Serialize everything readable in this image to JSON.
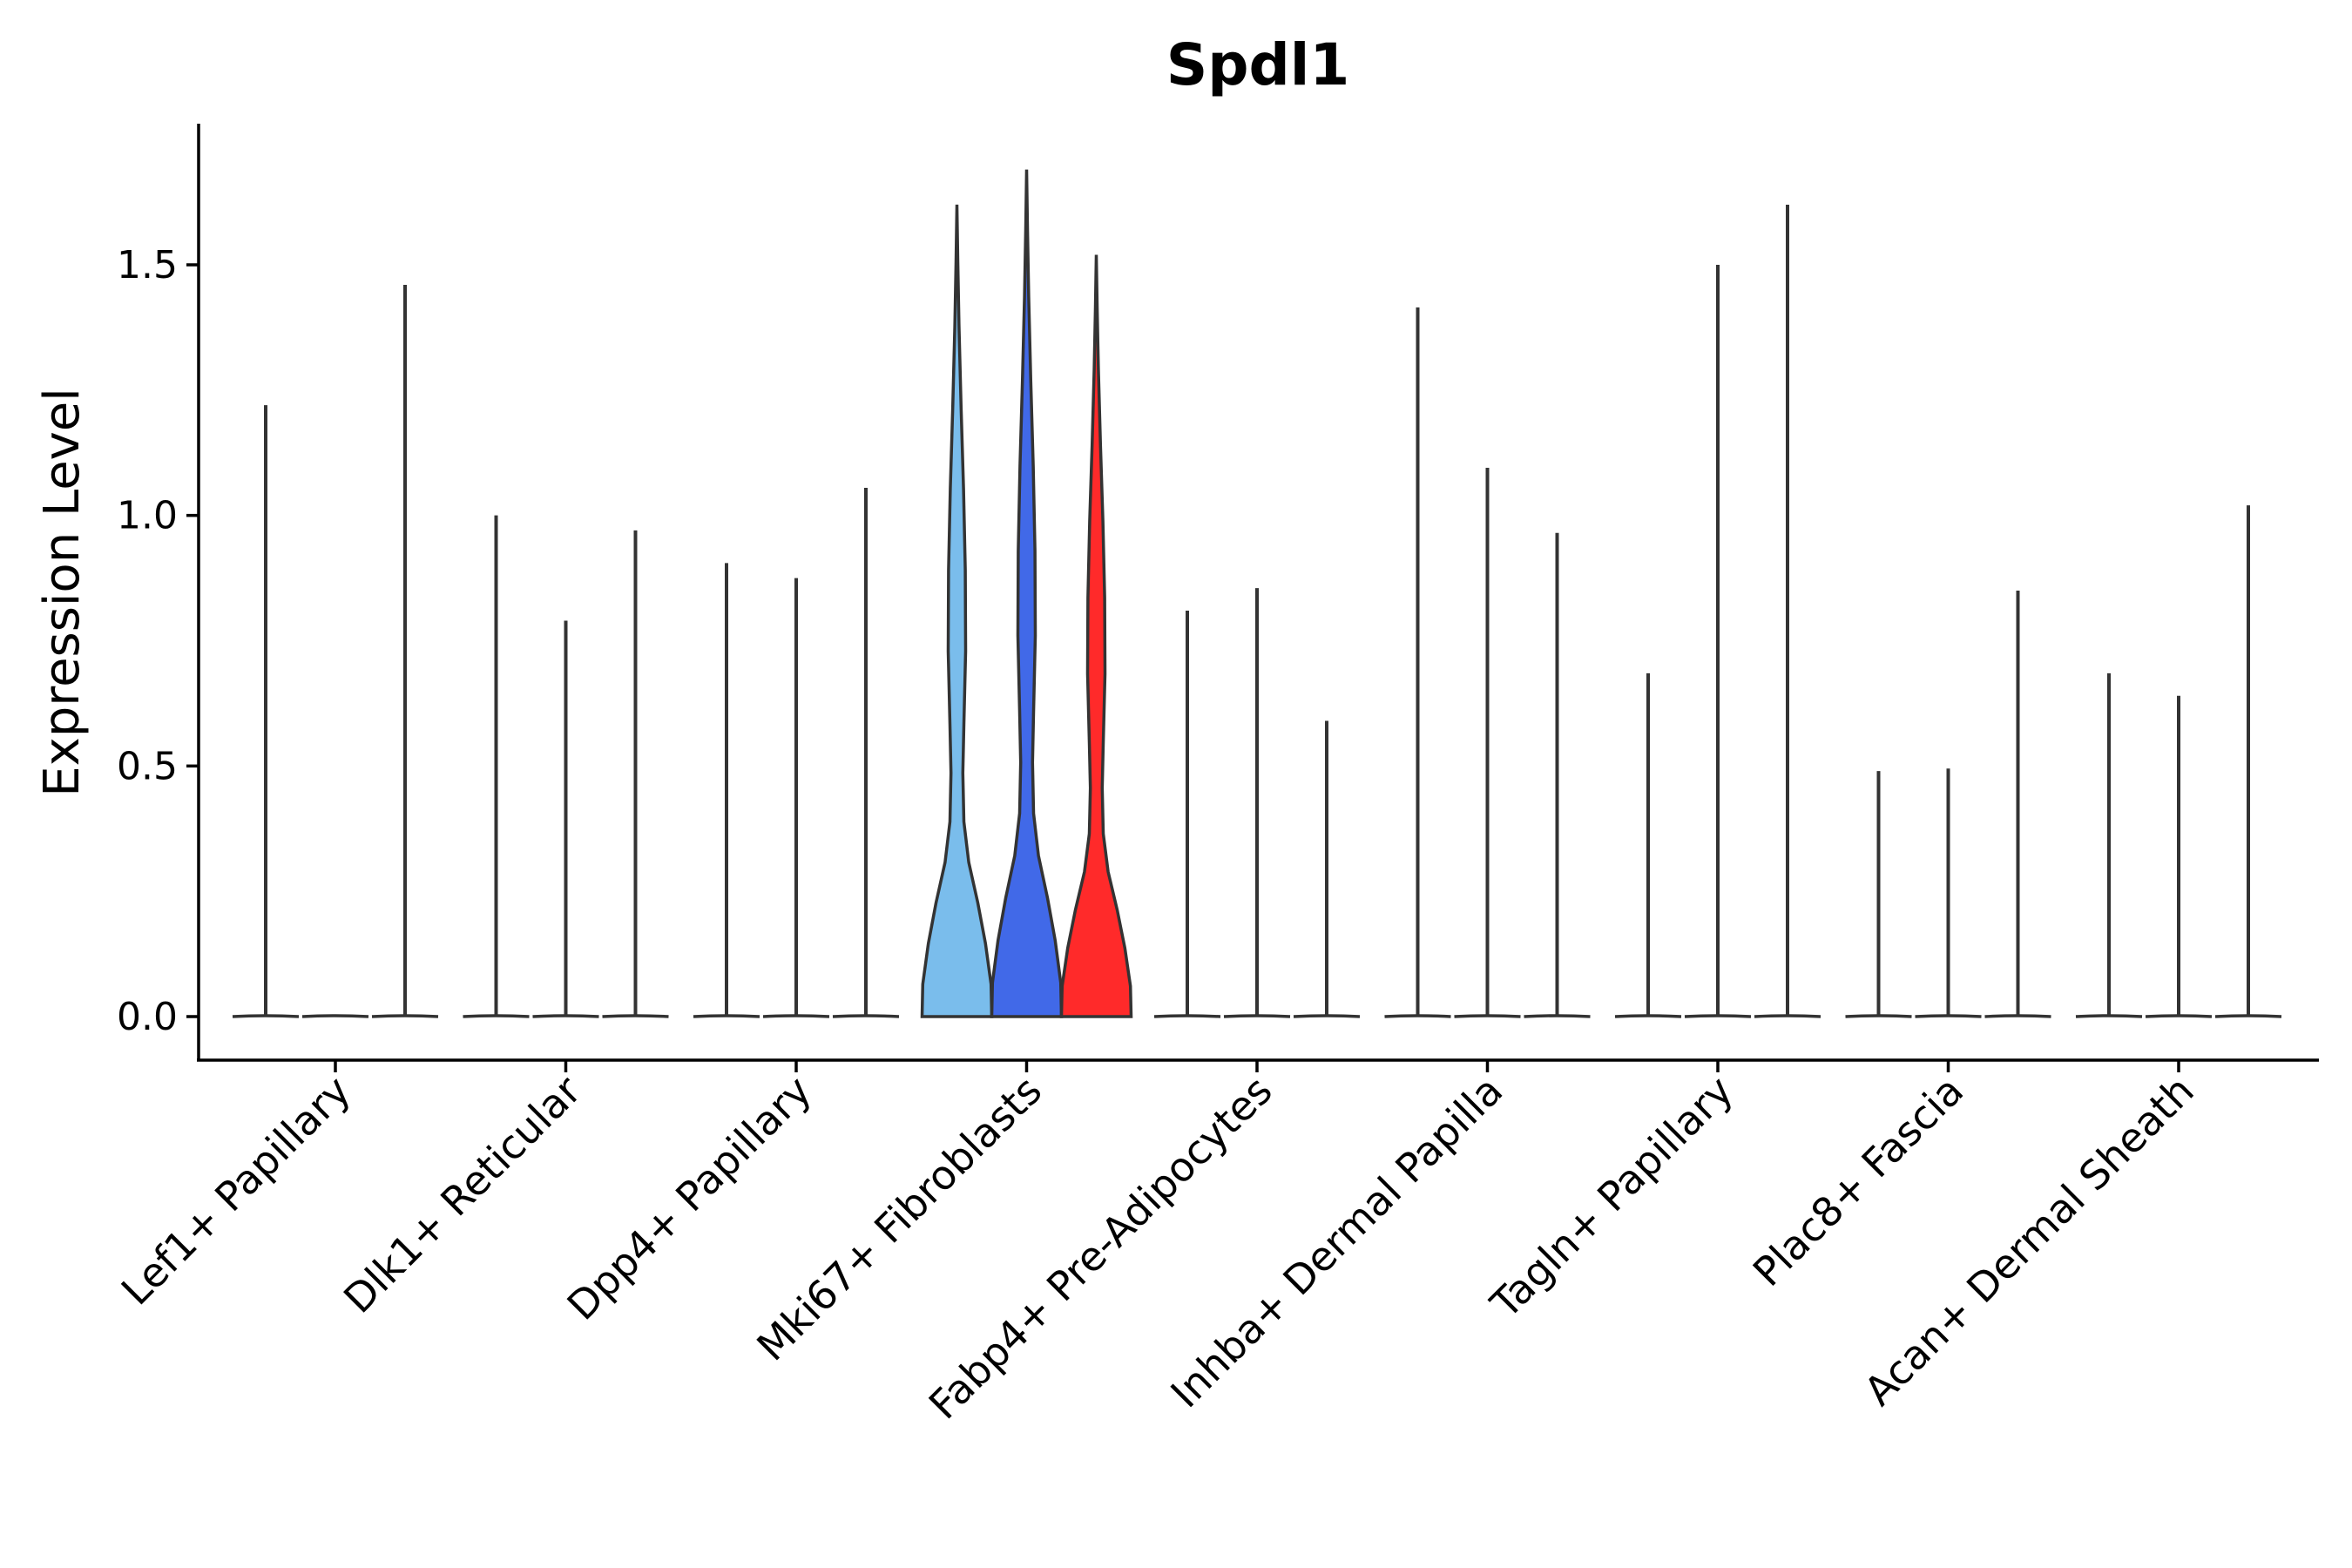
{
  "chart_data": {
    "type": "violin",
    "title": "Spdl1",
    "xlabel": "",
    "ylabel": "Expression Level",
    "ylim": [
      -0.085,
      1.78
    ],
    "yticks": [
      0.0,
      0.5,
      1.0,
      1.5
    ],
    "ytick_labels": [
      "0.0",
      "0.5",
      "1.0",
      "1.5"
    ],
    "legend": "none",
    "grid": false,
    "groups": [
      {
        "category": "Lef1+ Papillary",
        "violins": [
          {
            "max": 1.22,
            "color": "#333333",
            "shape": "spike"
          },
          {
            "max": 0.0,
            "color": "#333333",
            "shape": "spike"
          },
          {
            "max": 1.46,
            "color": "#333333",
            "shape": "spike"
          }
        ]
      },
      {
        "category": "Dlk1+ Reticular",
        "violins": [
          {
            "max": 1.0,
            "color": "#333333",
            "shape": "spike"
          },
          {
            "max": 0.79,
            "color": "#333333",
            "shape": "spike"
          },
          {
            "max": 0.97,
            "color": "#333333",
            "shape": "spike"
          }
        ]
      },
      {
        "category": "Dpp4+ Papillary",
        "violins": [
          {
            "max": 0.905,
            "color": "#333333",
            "shape": "spike"
          },
          {
            "max": 0.875,
            "color": "#333333",
            "shape": "spike"
          },
          {
            "max": 1.055,
            "color": "#333333",
            "shape": "spike"
          }
        ]
      },
      {
        "category": "Mki67+ Fibroblasts",
        "violins": [
          {
            "max": 1.62,
            "color": "#7ABDEC",
            "shape": "full"
          },
          {
            "max": 1.69,
            "color": "#4169E8",
            "shape": "full"
          },
          {
            "max": 1.52,
            "color": "#FF2A2A",
            "shape": "full"
          }
        ]
      },
      {
        "category": "Fabp4+ Pre-Adipocytes",
        "violins": [
          {
            "max": 0.81,
            "color": "#333333",
            "shape": "spike"
          },
          {
            "max": 0.855,
            "color": "#333333",
            "shape": "spike"
          },
          {
            "max": 0.59,
            "color": "#333333",
            "shape": "spike"
          }
        ]
      },
      {
        "category": "Inhba+ Dermal Papilla",
        "violins": [
          {
            "max": 1.415,
            "color": "#333333",
            "shape": "spike"
          },
          {
            "max": 1.095,
            "color": "#333333",
            "shape": "spike"
          },
          {
            "max": 0.965,
            "color": "#333333",
            "shape": "spike"
          }
        ]
      },
      {
        "category": "Tagln+ Papillary",
        "violins": [
          {
            "max": 0.685,
            "color": "#333333",
            "shape": "spike"
          },
          {
            "max": 1.5,
            "color": "#333333",
            "shape": "spike"
          },
          {
            "max": 1.62,
            "color": "#333333",
            "shape": "spike"
          }
        ]
      },
      {
        "category": "Plac8+ Fascia",
        "violins": [
          {
            "max": 0.49,
            "color": "#333333",
            "shape": "spike"
          },
          {
            "max": 0.495,
            "color": "#333333",
            "shape": "spike"
          },
          {
            "max": 0.85,
            "color": "#333333",
            "shape": "spike"
          }
        ]
      },
      {
        "category": "Acan+ Dermal Sheath",
        "violins": [
          {
            "max": 0.685,
            "color": "#333333",
            "shape": "spike"
          },
          {
            "max": 0.64,
            "color": "#333333",
            "shape": "spike"
          },
          {
            "max": 1.02,
            "color": "#333333",
            "shape": "spike"
          }
        ]
      }
    ]
  }
}
